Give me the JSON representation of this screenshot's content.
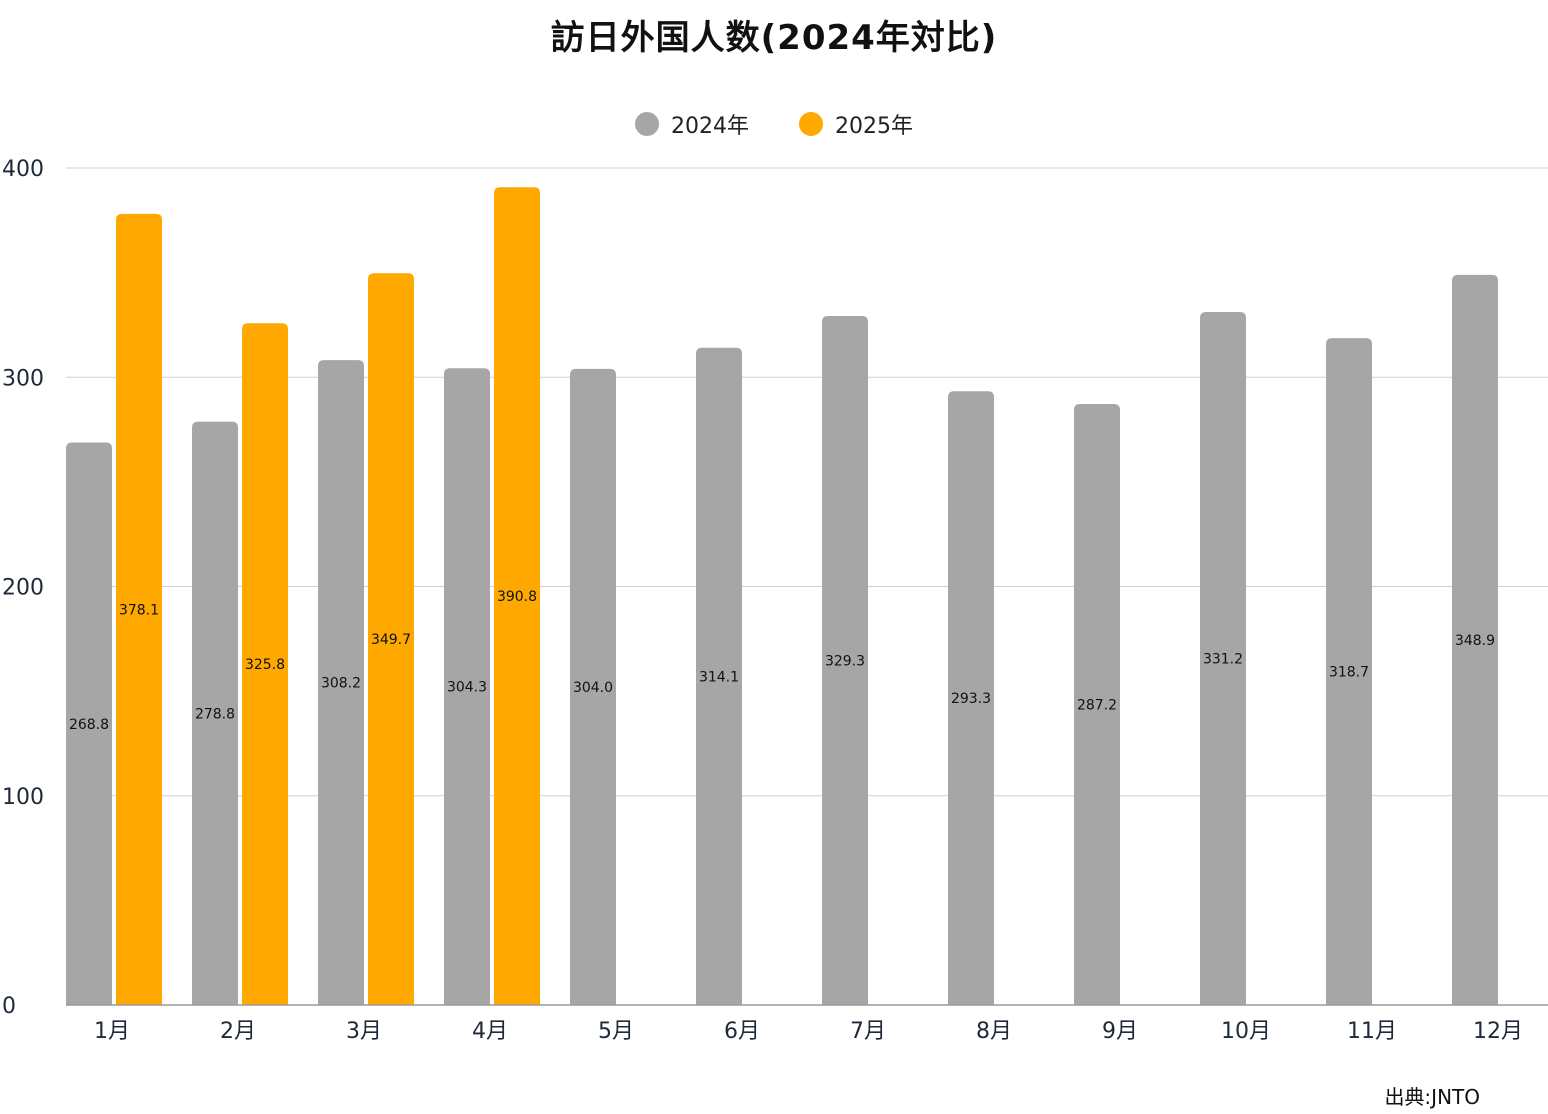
{
  "chart_data": {
    "type": "bar",
    "title": "訪日外国人数(2024年対比)",
    "categories": [
      "1月",
      "2月",
      "3月",
      "4月",
      "5月",
      "6月",
      "7月",
      "8月",
      "9月",
      "10月",
      "11月",
      "12月"
    ],
    "series": [
      {
        "name": "2024年",
        "color": "#a6a6a6",
        "values": [
          268.8,
          278.8,
          308.2,
          304.3,
          304.0,
          314.1,
          329.3,
          293.3,
          287.2,
          331.2,
          318.7,
          348.9
        ],
        "labels": [
          "268.8",
          "278.8",
          "308.2",
          "304.3",
          "304.0",
          "314.1",
          "329.3",
          "293.3",
          "287.2",
          "331.2",
          "318.7",
          "348.9"
        ]
      },
      {
        "name": "2025年",
        "color": "#ffa900",
        "values": [
          378.1,
          325.8,
          349.7,
          390.8,
          null,
          null,
          null,
          null,
          null,
          null,
          null,
          null
        ],
        "labels": [
          "378.1",
          "325.8",
          "349.7",
          "390.8",
          null,
          null,
          null,
          null,
          null,
          null,
          null,
          null
        ]
      }
    ],
    "yticks": [
      "0",
      "100",
      "200",
      "300",
      "400"
    ],
    "ytick_values": [
      0,
      100,
      200,
      300,
      400
    ],
    "ylim": [
      0,
      400
    ],
    "grid": true,
    "legend_position": "top-center",
    "source": "出典:JNTO"
  }
}
